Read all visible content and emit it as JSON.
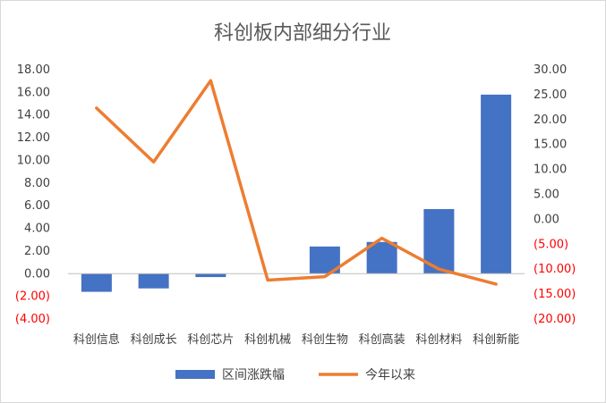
{
  "chart_data": {
    "type": "bar+line",
    "title": "科创板内部细分行业",
    "categories": [
      "科创信息",
      "科创成长",
      "科创芯片",
      "科创机械",
      "科创生物",
      "科创高装",
      "科创材料",
      "科创新能"
    ],
    "series": [
      {
        "name": "区间涨跌幅",
        "type": "bar",
        "axis": "left",
        "color": "#4472c4",
        "values": [
          -1.6,
          -1.3,
          -0.3,
          0.0,
          2.4,
          2.8,
          5.7,
          15.8
        ]
      },
      {
        "name": "今年以来",
        "type": "line",
        "axis": "right",
        "color": "#ed7d31",
        "values": [
          22.3,
          11.5,
          27.8,
          -12.2,
          -11.5,
          -3.8,
          -10.0,
          -13.0
        ]
      }
    ],
    "y_left": {
      "range": [
        -4,
        18
      ],
      "ticks": [
        18,
        16,
        14,
        12,
        10,
        8,
        6,
        4,
        2,
        0,
        -2,
        -4
      ],
      "tick_labels": [
        "18.00",
        "16.00",
        "14.00",
        "12.00",
        "10.00",
        "8.00",
        "6.00",
        "4.00",
        "2.00",
        "0.00",
        "(2.00)",
        "(4.00)"
      ]
    },
    "y_right": {
      "range": [
        -20,
        30
      ],
      "ticks": [
        30,
        25,
        20,
        15,
        10,
        5,
        0,
        -5,
        -10,
        -15,
        -20
      ],
      "tick_labels": [
        "30.00",
        "25.00",
        "20.00",
        "15.00",
        "10.00",
        "5.00",
        "0.00",
        "(5.00)",
        "(10.00)",
        "(15.00)",
        "(20.00)"
      ],
      "negative_label_color": "#ff0000"
    },
    "grid": false,
    "legend_position": "bottom"
  }
}
